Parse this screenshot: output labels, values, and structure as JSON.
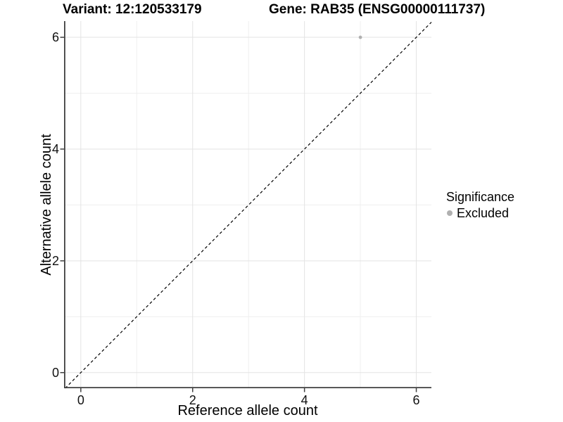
{
  "chart_data": {
    "type": "scatter",
    "titles": {
      "variant": "Variant: 12:120533179",
      "gene": "Gene: RAB35 (ENSG00000111737)"
    },
    "xlabel": "Reference allele count",
    "ylabel": "Alternative allele count",
    "xlim": [
      -0.3,
      6.27
    ],
    "ylim": [
      -0.28,
      6.29
    ],
    "x_breaks": [
      0,
      2,
      4,
      6
    ],
    "y_breaks": [
      0,
      2,
      4,
      6
    ],
    "x_minor_breaks": [
      1,
      3,
      5
    ],
    "y_minor_breaks": [
      1,
      3,
      5
    ],
    "grid": true,
    "series": [
      {
        "name": "Excluded",
        "color": "#b0b0b0",
        "points": [
          {
            "x": 5,
            "y": 6
          }
        ]
      }
    ],
    "identity_line": {
      "equation": "y = x",
      "style": "dashed",
      "color": "#000000"
    },
    "legend": {
      "position": "right",
      "title": "Significance",
      "items": [
        {
          "label": "Excluded",
          "color": "#b0b0b0"
        }
      ]
    }
  },
  "colors": {
    "background": "#ffffff",
    "grid_major": "#e3e3e3",
    "grid_minor": "#efefef",
    "axis_line": "#404040",
    "tick_mark": "#404040",
    "point": "#b0b0b0"
  }
}
